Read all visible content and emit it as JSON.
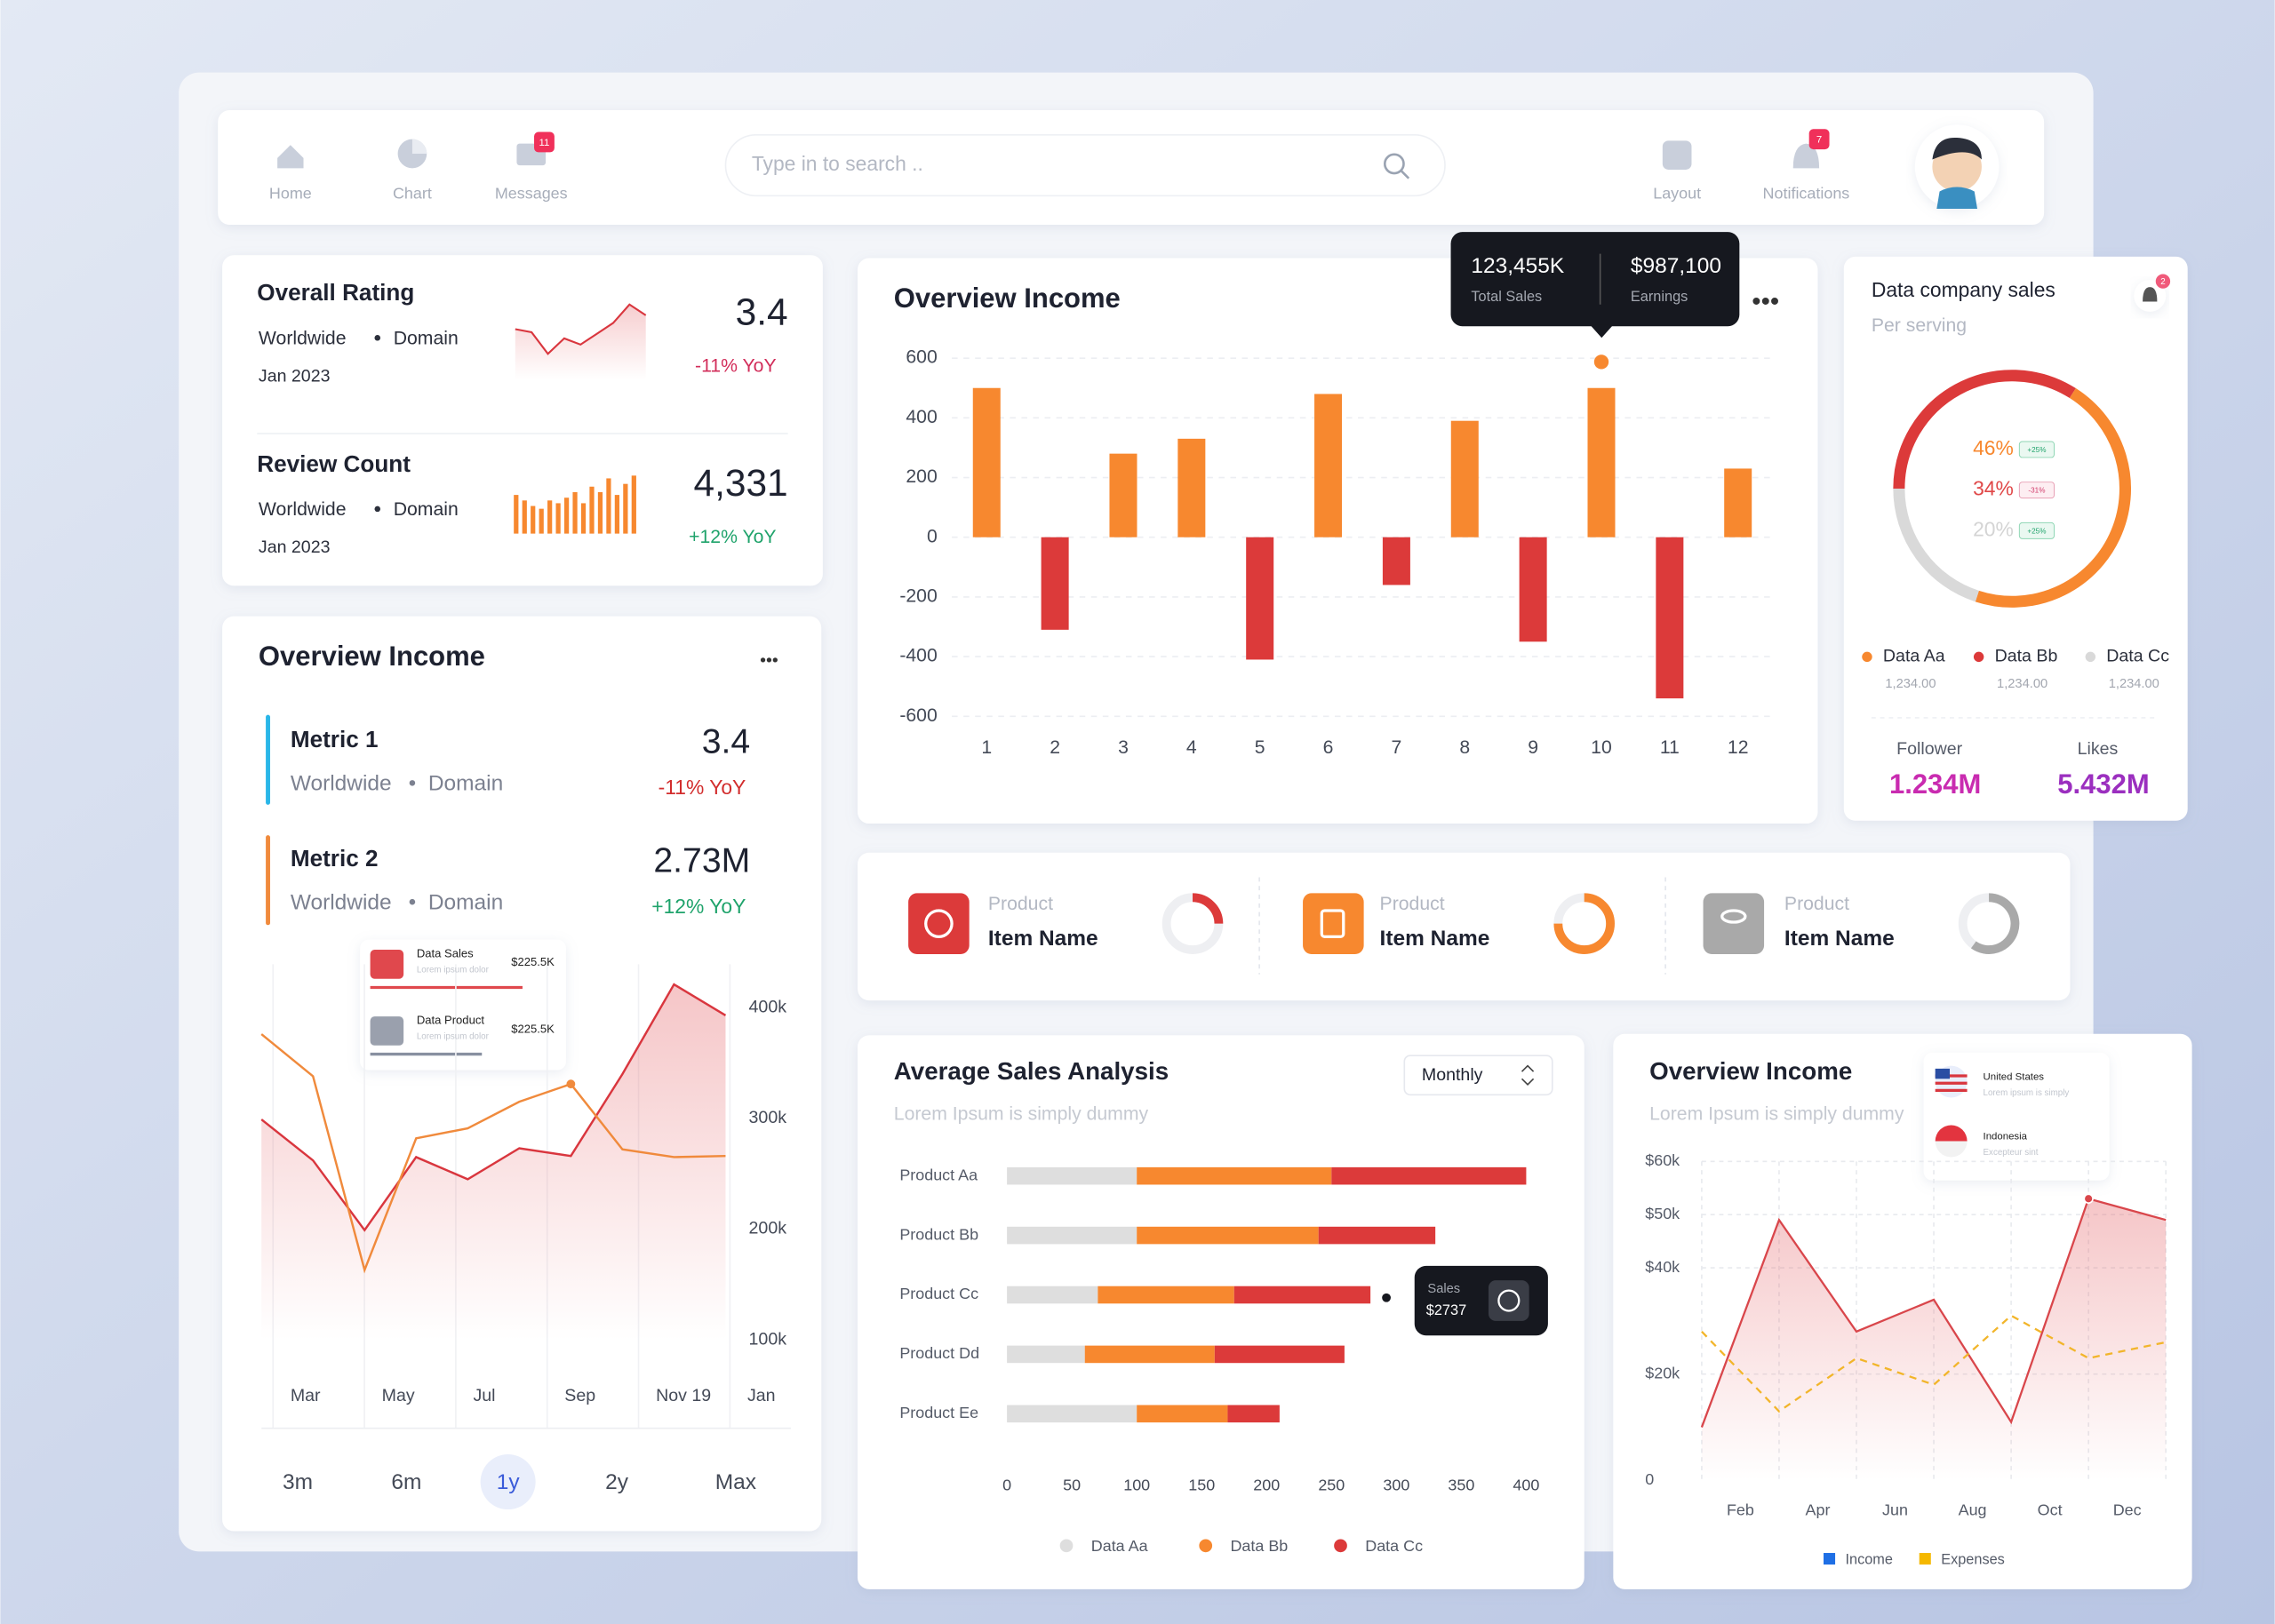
{
  "nav": {
    "items": [
      "Home",
      "Chart",
      "Messages"
    ],
    "messages_badge": 11,
    "search_placeholder": "Type in to search ..",
    "right_items": [
      "Layout",
      "Notifications"
    ],
    "notifications_badge": 7
  },
  "rating": {
    "title": "Overall Rating",
    "region": "Worldwide",
    "domain": "Domain",
    "date": "Jan 2023",
    "value": 3.4,
    "change": "-11% YoY",
    "trend": [
      36,
      34,
      20,
      30,
      26,
      33,
      40,
      52,
      45
    ]
  },
  "reviews": {
    "title": "Review Count",
    "region": "Worldwide",
    "domain": "Domain",
    "date": "Jan 2023",
    "value": "4,331",
    "change": "+12% YoY",
    "bars": [
      28,
      24,
      20,
      18,
      24,
      22,
      26,
      30,
      22,
      34,
      30,
      40,
      28,
      36,
      42
    ]
  },
  "income_overview": {
    "title": "Overview Income",
    "metrics": [
      {
        "name": "Metric 1",
        "region": "Worldwide",
        "domain": "Domain",
        "value": 3.4,
        "change": "-11% YoY"
      },
      {
        "name": "Metric 2",
        "region": "Worldwide",
        "domain": "Domain",
        "value": "2.73M",
        "change": "+12% YoY"
      }
    ],
    "chart": {
      "type": "line",
      "xtick_labels": [
        "Mar",
        "May",
        "Jul",
        "Sep",
        "Nov 19",
        "Jan"
      ],
      "series": [
        {
          "name": "Data Sales",
          "color": "#d9363e",
          "values": [
            299,
            262,
            199,
            265,
            245,
            273,
            266,
            340,
            421,
            393
          ]
        },
        {
          "name": "Data Product",
          "color": "#f08a3c",
          "values": [
            376,
            338,
            163,
            282,
            291,
            315,
            331,
            272,
            265,
            266
          ]
        }
      ],
      "ylim": [
        100,
        430
      ],
      "yticks": [
        {
          "value": 100,
          "label": "100k"
        },
        {
          "value": 200,
          "label": "200k"
        },
        {
          "value": 300,
          "label": "300k"
        },
        {
          "value": 400,
          "label": "400k"
        }
      ]
    },
    "tooltip": [
      {
        "note": "Lorem ipsum dolor",
        "value": "$225.5K"
      },
      {
        "note": "Lorem ipsum dolor",
        "value": "$225.5K"
      }
    ],
    "periods": [
      "3m",
      "6m",
      "1y",
      "2y",
      "Max"
    ],
    "active_period": 2
  },
  "income_main": {
    "type": "bar",
    "title": "Overview Income",
    "categories": [
      1,
      2,
      3,
      4,
      5,
      6,
      7,
      8,
      9,
      10,
      11,
      12
    ],
    "values": [
      500,
      -310,
      280,
      330,
      -410,
      480,
      -160,
      390,
      -350,
      500,
      -540,
      230
    ],
    "colors": {
      "positive": "#f7882f",
      "negative": "#dc3a3a"
    },
    "ylim": [
      -600,
      600
    ],
    "yticks": [
      -600,
      -400,
      -200,
      0,
      200,
      400,
      600
    ],
    "grid": true,
    "tooltip": {
      "total": "123,455K",
      "total_label": "Total Sales",
      "earnings": "$987,100",
      "earnings_label": "Earnings",
      "highlight": 9
    }
  },
  "company_sales": {
    "type": "donut",
    "title": "Data company sales",
    "subtitle": "Per serving",
    "notification_badge": 2,
    "series": [
      {
        "name": "Data Aa",
        "color": "#f7882f",
        "value": 46,
        "label": "46%",
        "badge": "+25%",
        "amount": "1,234.00"
      },
      {
        "name": "Data Bb",
        "color": "#dc3a3a",
        "value": 34,
        "label": "34%",
        "badge": "-31%",
        "amount": "1,234.00"
      },
      {
        "name": "Data Cc",
        "color": "#d9d9d9",
        "value": 20,
        "label": "20%",
        "badge": "+25%",
        "amount": "1,234.00"
      }
    ],
    "stats": [
      {
        "name": "Follower",
        "value": "1.234M"
      },
      {
        "name": "Likes",
        "value": "5.432M"
      }
    ]
  },
  "products": [
    {
      "label": "Product",
      "name": "Item Name",
      "color": "#dc3a3a",
      "progress": 25
    },
    {
      "label": "Product",
      "name": "Item Name",
      "color": "#f7882f",
      "progress": 75
    },
    {
      "label": "Product",
      "name": "Item Name",
      "color": "#a9a9a9",
      "progress": 60
    }
  ],
  "sales_analysis": {
    "type": "stacked-barh",
    "title": "Average Sales Analysis",
    "subtitle": "Lorem Ipsum is simply dummy",
    "period": "Monthly",
    "categories": [
      "Product Aa",
      "Product Bb",
      "Product Cc",
      "Product Dd",
      "Product Ee"
    ],
    "series": [
      {
        "name": "Data Aa",
        "color": "#dedede",
        "values": [
          100,
          100,
          70,
          60,
          100
        ]
      },
      {
        "name": "Data Bb",
        "color": "#f7882f",
        "values": [
          150,
          140,
          105,
          100,
          70
        ]
      },
      {
        "name": "Data Cc",
        "color": "#dc3a3a",
        "values": [
          150,
          90,
          105,
          100,
          40
        ]
      }
    ],
    "xlim": [
      0,
      400
    ],
    "xticks": [
      0,
      50,
      100,
      150,
      200,
      250,
      300,
      350,
      400
    ],
    "tooltip": {
      "label": "Sales",
      "value": "$2737",
      "highlight": 2
    }
  },
  "income_right": {
    "type": "line",
    "title": "Overview Income",
    "subtitle": "Lorem Ipsum is simply dummy",
    "xtick_labels": [
      "Feb",
      "Apr",
      "Jun",
      "Aug",
      "Oct",
      "Dec"
    ],
    "series": [
      {
        "name": "Income",
        "color": "#d9464b",
        "legend_color": "#1f6fe5",
        "values": [
          10,
          49,
          28,
          34,
          11,
          53,
          49
        ]
      },
      {
        "name": "Expenses",
        "color": "#f2b52a",
        "legend_color": "#f5b800",
        "values": [
          28,
          13,
          23,
          18,
          31,
          23,
          26
        ]
      }
    ],
    "ylim": [
      0,
      60
    ],
    "yticks": [
      0,
      {
        "value": 20,
        "label": "$20k"
      },
      {
        "value": 40,
        "label": "$40k"
      },
      {
        "value": 50,
        "label": "$50k"
      },
      {
        "value": 60,
        "label": "$60k"
      }
    ],
    "grid": true,
    "tooltip": [
      {
        "name": "United States",
        "note": "Lorem ipsum is simply"
      },
      {
        "name": "Indonesia",
        "note": "Excepteur sint"
      }
    ],
    "highlight": 5
  }
}
